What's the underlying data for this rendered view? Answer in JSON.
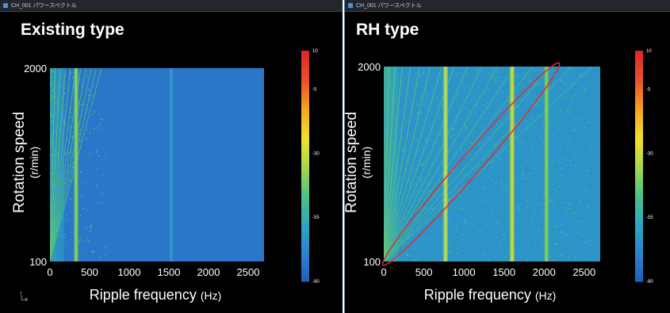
{
  "panels": [
    {
      "tab_label": "CH_001 パワースペクトル",
      "title": "Existing type",
      "chart_data": {
        "type": "heatmap",
        "title": "Existing type",
        "xlabel": "Ripple frequency",
        "xlabel_unit": "(Hz)",
        "ylabel": "Rotation speed",
        "ylabel_unit": "(r/min)",
        "xlim": [
          -50,
          2700
        ],
        "ylim": [
          100,
          2000
        ],
        "x_ticks": [
          "0",
          "500",
          "1000",
          "1500",
          "2000",
          "2500"
        ],
        "y_ticks": [
          "100",
          "2000"
        ],
        "colorbar_ticks": [
          "10",
          "-5",
          "-30",
          "-55",
          "-80"
        ],
        "colorbar_range": [
          -80,
          10
        ],
        "background_level_db": -72,
        "lines": [
          {
            "name": "order lines",
            "count": 10
          },
          {
            "name": "vertical band",
            "x": 330,
            "level": "high"
          },
          {
            "name": "vertical band",
            "x": 1530,
            "level": "low"
          }
        ]
      }
    },
    {
      "tab_label": "CH_001 パワースペクトル",
      "title": "RH type",
      "chart_data": {
        "type": "heatmap",
        "title": "RH type",
        "xlabel": "Ripple frequency",
        "xlabel_unit": "(Hz)",
        "ylabel": "Rotation speed",
        "ylabel_unit": "(r/min)",
        "xlim": [
          -50,
          2700
        ],
        "ylim": [
          100,
          2000
        ],
        "x_ticks": [
          "0",
          "500",
          "1000",
          "1500",
          "2000",
          "2500"
        ],
        "y_ticks": [
          "100",
          "2000"
        ],
        "colorbar_ticks": [
          "10",
          "-5",
          "-30",
          "-55",
          "-80"
        ],
        "colorbar_range": [
          -80,
          10
        ],
        "background_level_db": -63,
        "lines": [
          {
            "name": "order lines",
            "count": 16
          },
          {
            "name": "vertical band",
            "x": 770,
            "level": "high"
          },
          {
            "name": "vertical band",
            "x": 1600,
            "level": "high"
          },
          {
            "name": "vertical band",
            "x": 2030,
            "level": "medium"
          }
        ],
        "highlight_ellipse": {
          "x_range": [
            30,
            2150
          ],
          "y_range": [
            100,
            2000
          ],
          "color": "#e03030"
        }
      }
    }
  ],
  "colors": {
    "colormap": [
      "#1d5fb8",
      "#2f80d0",
      "#2aa7c0",
      "#4cc08a",
      "#a7d64a",
      "#f0e030",
      "#f5a623",
      "#e8532b",
      "#e02828"
    ],
    "highlight": "#e03030"
  }
}
